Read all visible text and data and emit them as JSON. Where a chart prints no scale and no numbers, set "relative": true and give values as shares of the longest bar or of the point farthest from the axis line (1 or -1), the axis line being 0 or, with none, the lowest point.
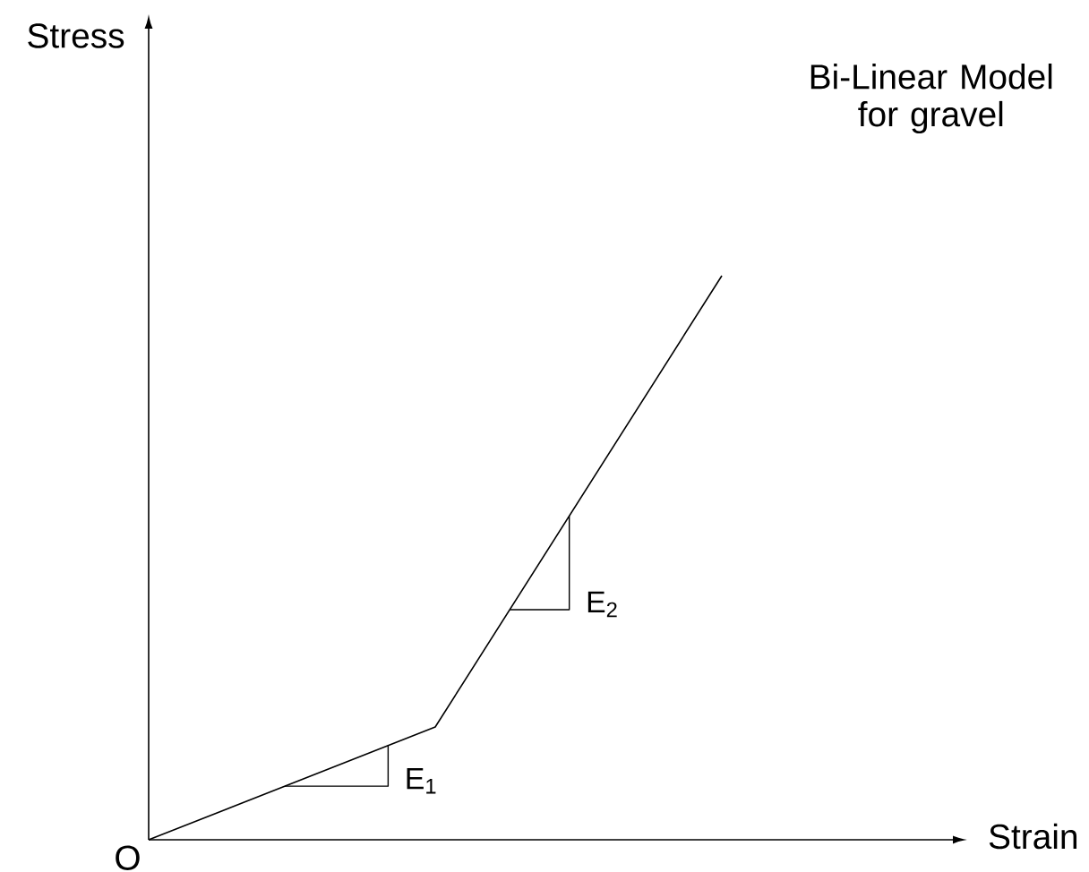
{
  "chart_data": {
    "type": "line",
    "title": "Bi-Linear Model for gravel",
    "xlabel": "Strain",
    "relative": true,
    "categories": [
      null,
      null,
      null
    ],
    "values": [
      0,
      0.2,
      1
    ],
    "color": "#000000",
    "annotations": [
      "Stress",
      "O",
      "E$_{1}$",
      "E$_{2}$"
    ]
  }
}
